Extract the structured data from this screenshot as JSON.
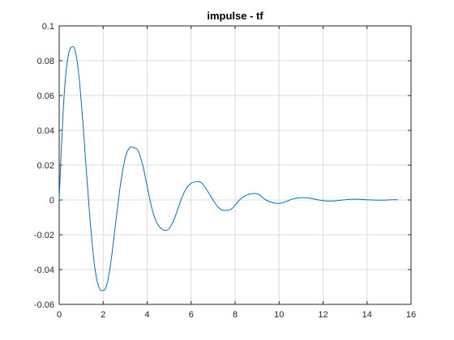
{
  "chart_data": {
    "type": "line",
    "title": "impulse - tf",
    "xlabel": "",
    "ylabel": "",
    "xlim": [
      0,
      16
    ],
    "ylim": [
      -0.06,
      0.1
    ],
    "x_ticks": [
      0,
      2,
      4,
      6,
      8,
      10,
      12,
      14,
      16
    ],
    "y_ticks": [
      -0.06,
      -0.04,
      -0.02,
      0,
      0.02,
      0.04,
      0.06,
      0.08,
      0.1
    ],
    "x_tick_labels": [
      "0",
      "2",
      "4",
      "6",
      "8",
      "10",
      "12",
      "14",
      "16"
    ],
    "y_tick_labels": [
      "-0.06",
      "-0.04",
      "-0.02",
      "0",
      "0.02",
      "0.04",
      "0.06",
      "0.08",
      "0.1"
    ],
    "grid": true,
    "legend": false,
    "series": [
      {
        "color": "#0072BD",
        "x": [
          0,
          0.1,
          0.2,
          0.3,
          0.4,
          0.5,
          0.6,
          0.65,
          0.7,
          0.8,
          0.9,
          1.0,
          1.1,
          1.2,
          1.3,
          1.4,
          1.5,
          1.6,
          1.7,
          1.8,
          1.9,
          2.0,
          2.1,
          2.2,
          2.3,
          2.4,
          2.6,
          2.8,
          3.0,
          3.2,
          3.4,
          3.5,
          3.6,
          3.8,
          4.0,
          4.2,
          4.4,
          4.6,
          4.8,
          4.9,
          5.0,
          5.2,
          5.4,
          5.6,
          5.8,
          6.0,
          6.2,
          6.35,
          6.5,
          6.7,
          6.9,
          7.1,
          7.3,
          7.5,
          7.8,
          8.0,
          8.2,
          8.4,
          8.7,
          9.0,
          9.2,
          9.4,
          9.7,
          10.0,
          10.3,
          10.6,
          10.9,
          11.2,
          11.5,
          11.8,
          12.1,
          12.4,
          12.7,
          13.0,
          13.3,
          13.6,
          13.9,
          14.2,
          14.5,
          14.8,
          15.1,
          15.4
        ],
        "y": [
          0,
          0.03,
          0.055,
          0.072,
          0.082,
          0.087,
          0.088,
          0.088,
          0.087,
          0.081,
          0.071,
          0.057,
          0.041,
          0.023,
          0.006,
          -0.011,
          -0.025,
          -0.037,
          -0.045,
          -0.05,
          -0.052,
          -0.052,
          -0.051,
          -0.047,
          -0.04,
          -0.031,
          -0.01,
          0.01,
          0.024,
          0.03,
          0.03,
          0.0295,
          0.028,
          0.02,
          0.008,
          -0.004,
          -0.012,
          -0.016,
          -0.0175,
          -0.0173,
          -0.0165,
          -0.012,
          -0.005,
          0.002,
          0.007,
          0.0095,
          0.0105,
          0.0105,
          0.0095,
          0.006,
          0.002,
          -0.002,
          -0.005,
          -0.006,
          -0.0055,
          -0.003,
          0,
          0.002,
          0.0035,
          0.0035,
          0.002,
          0,
          -0.0015,
          -0.002,
          -0.001,
          0.0005,
          0.0012,
          0.0013,
          0.0008,
          0,
          -0.0005,
          -0.0006,
          -0.0003,
          0.0001,
          0.0004,
          0.0004,
          0.0002,
          0,
          -0.0001,
          -0.0001,
          0.0001,
          0.0001
        ]
      }
    ]
  }
}
